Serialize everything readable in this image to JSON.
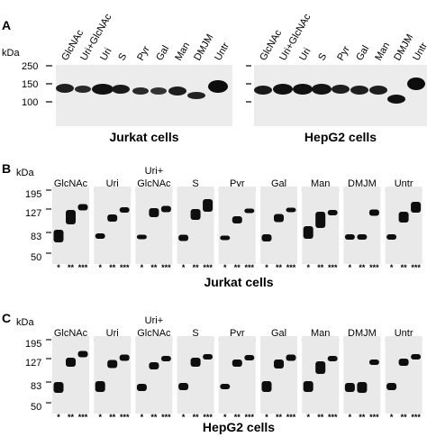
{
  "panel_a": {
    "letter": "A",
    "unit": "kDa",
    "mw_markers": [
      "250",
      "150",
      "100"
    ],
    "lanes": [
      "GlcNAc",
      "Uri+GlcNAc",
      "Uri",
      "S",
      "Pyr",
      "Gal",
      "Man",
      "DMJM",
      "Untr"
    ],
    "blots": [
      {
        "cell_line": "Jurkat cells"
      },
      {
        "cell_line": "HepG2 cells"
      }
    ]
  },
  "panels_bc": [
    {
      "letter": "B",
      "unit": "kDa",
      "mw_markers": [
        "195",
        "127",
        "83",
        "50"
      ],
      "groups": [
        {
          "label": "GlcNAc"
        },
        {
          "label": "Uri"
        },
        {
          "label": "Uri+ GlcNAc",
          "line1": "Uri+",
          "line2": "GlcNAc"
        },
        {
          "label": "S"
        },
        {
          "label": "Pyr"
        },
        {
          "label": "Gal"
        },
        {
          "label": "Man"
        },
        {
          "label": "DMJM"
        },
        {
          "label": "Untr"
        }
      ],
      "sub_lane_marks": [
        "*",
        "**",
        "***"
      ],
      "cell_line": "Jurkat cells"
    },
    {
      "letter": "C",
      "unit": "kDa",
      "mw_markers": [
        "195",
        "127",
        "83",
        "50"
      ],
      "groups": [
        {
          "label": "GlcNAc"
        },
        {
          "label": "Uri"
        },
        {
          "label": "Uri+ GlcNAc",
          "line1": "Uri+",
          "line2": "GlcNAc"
        },
        {
          "label": "S"
        },
        {
          "label": "Pyr"
        },
        {
          "label": "Gal"
        },
        {
          "label": "Man"
        },
        {
          "label": "DMJM"
        },
        {
          "label": "Untr"
        }
      ],
      "sub_lane_marks": [
        "*",
        "**",
        "***"
      ],
      "cell_line": "HepG2 cells"
    }
  ]
}
